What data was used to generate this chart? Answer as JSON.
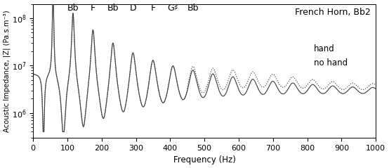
{
  "title": "French Horn, Bb2",
  "xlabel": "Frequency (Hz)",
  "ylabel": "Acoustic Impedance, |Z| (Pa.s.m⁻³)",
  "xlim": [
    0,
    1000
  ],
  "ylim_log": [
    300000.0,
    200000000.0
  ],
  "note_labels": [
    {
      "text": "Bb",
      "x": 117
    },
    {
      "text": "F",
      "x": 175
    },
    {
      "text": "Bb",
      "x": 233
    },
    {
      "text": "D",
      "x": 292
    },
    {
      "text": "F",
      "x": 350
    },
    {
      "text": "G♯",
      "x": 408
    },
    {
      "text": "Bb",
      "x": 466
    }
  ],
  "hand_label": {
    "text": "hand",
    "x": 820,
    "y_exp": 7.35
  },
  "nohand_label": {
    "text": "no hand",
    "x": 820,
    "y_exp": 7.05
  },
  "background_color": "#ffffff",
  "line_color": "#444444",
  "f0": 58.27,
  "xticks": [
    0,
    100,
    200,
    300,
    400,
    500,
    600,
    700,
    800,
    900,
    1000
  ],
  "yticks_major": [
    1000000.0,
    10000000.0,
    100000000.0
  ]
}
